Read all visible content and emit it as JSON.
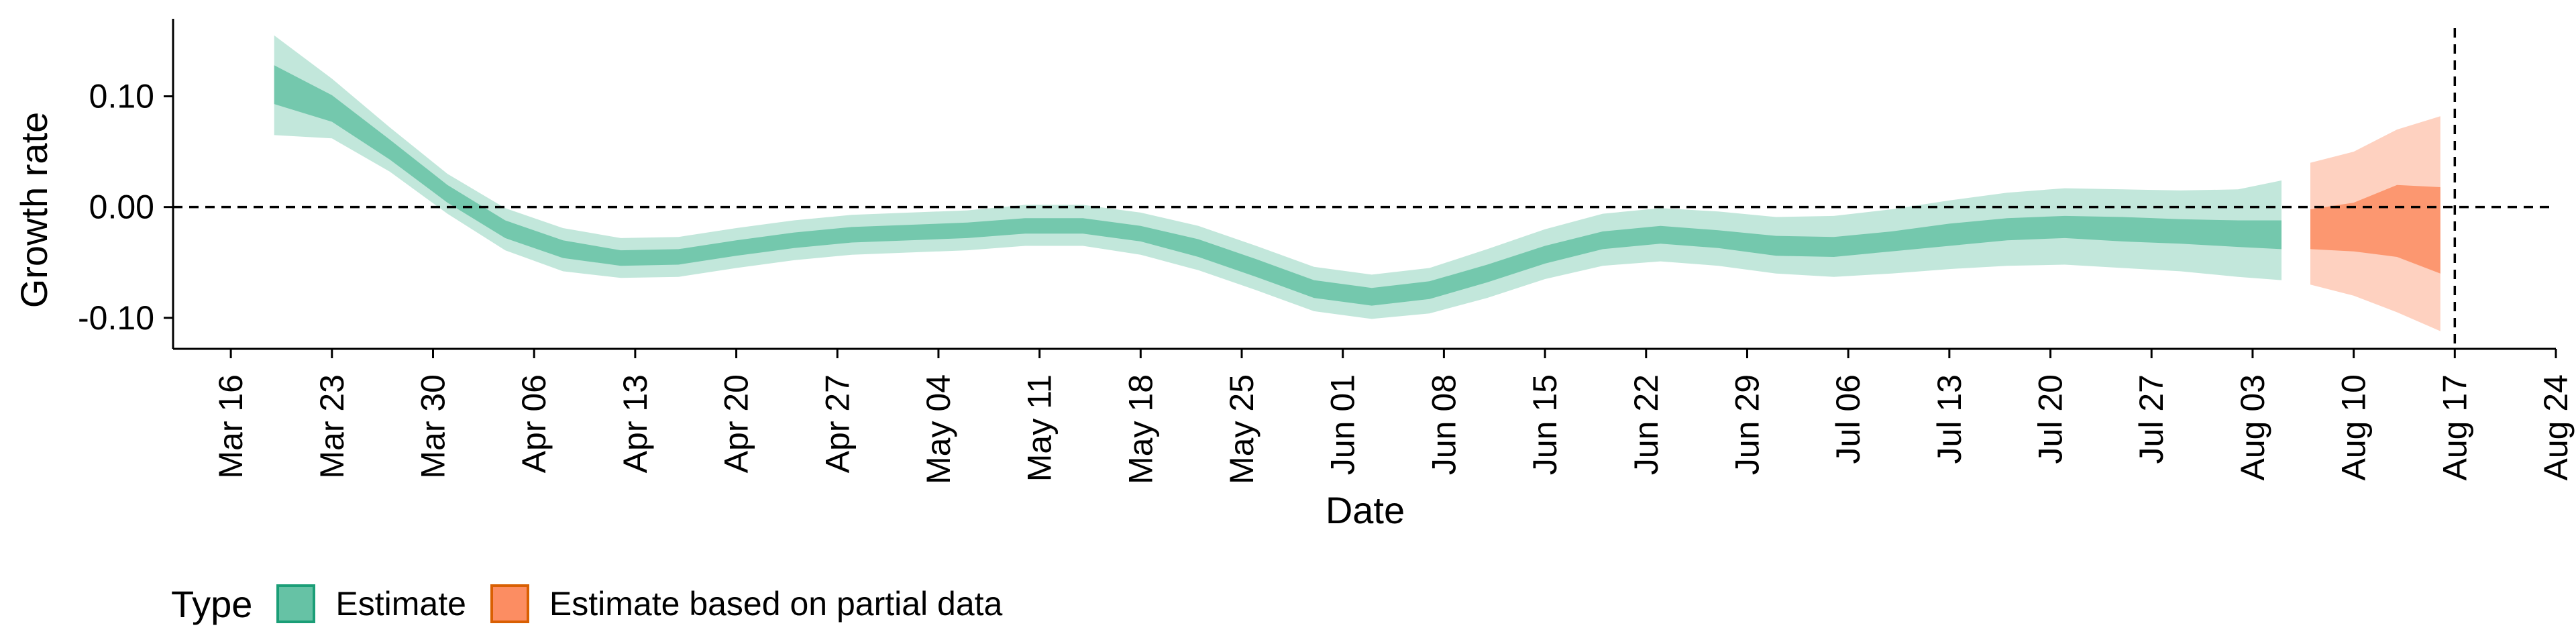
{
  "chart_data": {
    "type": "area",
    "xlabel": "Date",
    "ylabel": "Growth rate",
    "x_ticks": [
      "Mar 16",
      "Mar 23",
      "Mar 30",
      "Apr 06",
      "Apr 13",
      "Apr 20",
      "Apr 27",
      "May 04",
      "May 11",
      "May 18",
      "May 25",
      "Jun 01",
      "Jun 08",
      "Jun 15",
      "Jun 22",
      "Jun 29",
      "Jul 06",
      "Jul 13",
      "Jul 20",
      "Jul 27",
      "Aug 03",
      "Aug 10",
      "Aug 17",
      "Aug 24"
    ],
    "y_ticks": [
      "0.10",
      "0.00",
      "-0.10"
    ],
    "y_tick_values": [
      0.1,
      0.0,
      -0.1
    ],
    "xlim": [
      "2020-03-12",
      "2020-08-24"
    ],
    "ylim": [
      -0.128,
      0.17
    ],
    "reference_lines": {
      "horizontal_y": 0.0,
      "vertical_date": "2020-08-17"
    },
    "legend": {
      "title": "Type",
      "items": [
        {
          "label": "Estimate",
          "fill": "#66c2a5",
          "stroke": "#1b9e77"
        },
        {
          "label": "Estimate based on partial data",
          "fill": "#fc8d62",
          "stroke": "#d95f02"
        }
      ]
    },
    "series": [
      {
        "name": "Estimate",
        "color": "#66c2a5",
        "points": [
          {
            "date": "2020-03-19",
            "median": 0.11,
            "lower50": 0.093,
            "upper50": 0.128,
            "lower90": 0.065,
            "upper90": 0.155
          },
          {
            "date": "2020-03-23",
            "median": 0.089,
            "lower50": 0.077,
            "upper50": 0.101,
            "lower90": 0.062,
            "upper90": 0.116
          },
          {
            "date": "2020-03-27",
            "median": 0.052,
            "lower50": 0.043,
            "upper50": 0.061,
            "lower90": 0.032,
            "upper90": 0.072
          },
          {
            "date": "2020-03-31",
            "median": 0.012,
            "lower50": 0.004,
            "upper50": 0.02,
            "lower90": -0.006,
            "upper90": 0.03
          },
          {
            "date": "2020-04-04",
            "median": -0.02,
            "lower50": -0.028,
            "upper50": -0.012,
            "lower90": -0.039,
            "upper90": -0.001
          },
          {
            "date": "2020-04-08",
            "median": -0.038,
            "lower50": -0.046,
            "upper50": -0.03,
            "lower90": -0.058,
            "upper90": -0.019
          },
          {
            "date": "2020-04-12",
            "median": -0.046,
            "lower50": -0.053,
            "upper50": -0.039,
            "lower90": -0.064,
            "upper90": -0.028
          },
          {
            "date": "2020-04-16",
            "median": -0.045,
            "lower50": -0.052,
            "upper50": -0.038,
            "lower90": -0.063,
            "upper90": -0.027
          },
          {
            "date": "2020-04-20",
            "median": -0.037,
            "lower50": -0.044,
            "upper50": -0.03,
            "lower90": -0.055,
            "upper90": -0.019
          },
          {
            "date": "2020-04-24",
            "median": -0.03,
            "lower50": -0.037,
            "upper50": -0.023,
            "lower90": -0.048,
            "upper90": -0.012
          },
          {
            "date": "2020-04-28",
            "median": -0.025,
            "lower50": -0.032,
            "upper50": -0.018,
            "lower90": -0.043,
            "upper90": -0.007
          },
          {
            "date": "2020-05-02",
            "median": -0.023,
            "lower50": -0.03,
            "upper50": -0.016,
            "lower90": -0.041,
            "upper90": -0.005
          },
          {
            "date": "2020-05-06",
            "median": -0.021,
            "lower50": -0.028,
            "upper50": -0.014,
            "lower90": -0.039,
            "upper90": -0.003
          },
          {
            "date": "2020-05-10",
            "median": -0.017,
            "lower50": -0.024,
            "upper50": -0.01,
            "lower90": -0.035,
            "upper90": 0.002
          },
          {
            "date": "2020-05-14",
            "median": -0.017,
            "lower50": -0.024,
            "upper50": -0.01,
            "lower90": -0.035,
            "upper90": 0.002
          },
          {
            "date": "2020-05-18",
            "median": -0.024,
            "lower50": -0.031,
            "upper50": -0.017,
            "lower90": -0.043,
            "upper90": -0.005
          },
          {
            "date": "2020-05-22",
            "median": -0.037,
            "lower50": -0.045,
            "upper50": -0.029,
            "lower90": -0.057,
            "upper90": -0.017
          },
          {
            "date": "2020-05-26",
            "median": -0.055,
            "lower50": -0.063,
            "upper50": -0.047,
            "lower90": -0.075,
            "upper90": -0.035
          },
          {
            "date": "2020-05-30",
            "median": -0.074,
            "lower50": -0.082,
            "upper50": -0.066,
            "lower90": -0.094,
            "upper90": -0.054
          },
          {
            "date": "2020-06-03",
            "median": -0.081,
            "lower50": -0.089,
            "upper50": -0.073,
            "lower90": -0.101,
            "upper90": -0.061
          },
          {
            "date": "2020-06-07",
            "median": -0.075,
            "lower50": -0.083,
            "upper50": -0.067,
            "lower90": -0.096,
            "upper90": -0.055
          },
          {
            "date": "2020-06-11",
            "median": -0.06,
            "lower50": -0.068,
            "upper50": -0.052,
            "lower90": -0.082,
            "upper90": -0.038
          },
          {
            "date": "2020-06-15",
            "median": -0.043,
            "lower50": -0.051,
            "upper50": -0.035,
            "lower90": -0.065,
            "upper90": -0.02
          },
          {
            "date": "2020-06-19",
            "median": -0.03,
            "lower50": -0.038,
            "upper50": -0.022,
            "lower90": -0.053,
            "upper90": -0.006
          },
          {
            "date": "2020-06-23",
            "median": -0.025,
            "lower50": -0.033,
            "upper50": -0.017,
            "lower90": -0.049,
            "upper90": -0.001
          },
          {
            "date": "2020-06-27",
            "median": -0.029,
            "lower50": -0.037,
            "upper50": -0.021,
            "lower90": -0.053,
            "upper90": -0.004
          },
          {
            "date": "2020-07-01",
            "median": -0.035,
            "lower50": -0.044,
            "upper50": -0.026,
            "lower90": -0.06,
            "upper90": -0.009
          },
          {
            "date": "2020-07-05",
            "median": -0.036,
            "lower50": -0.045,
            "upper50": -0.027,
            "lower90": -0.063,
            "upper90": -0.008
          },
          {
            "date": "2020-07-09",
            "median": -0.031,
            "lower50": -0.04,
            "upper50": -0.022,
            "lower90": -0.06,
            "upper90": -0.002
          },
          {
            "date": "2020-07-13",
            "median": -0.025,
            "lower50": -0.035,
            "upper50": -0.015,
            "lower90": -0.056,
            "upper90": 0.006
          },
          {
            "date": "2020-07-17",
            "median": -0.02,
            "lower50": -0.03,
            "upper50": -0.01,
            "lower90": -0.053,
            "upper90": 0.013
          },
          {
            "date": "2020-07-21",
            "median": -0.018,
            "lower50": -0.028,
            "upper50": -0.008,
            "lower90": -0.052,
            "upper90": 0.017
          },
          {
            "date": "2020-07-25",
            "median": -0.02,
            "lower50": -0.031,
            "upper50": -0.009,
            "lower90": -0.055,
            "upper90": 0.016
          },
          {
            "date": "2020-07-29",
            "median": -0.022,
            "lower50": -0.033,
            "upper50": -0.011,
            "lower90": -0.058,
            "upper90": 0.015
          },
          {
            "date": "2020-08-02",
            "median": -0.024,
            "lower50": -0.036,
            "upper50": -0.012,
            "lower90": -0.063,
            "upper90": 0.016
          },
          {
            "date": "2020-08-05",
            "median": -0.025,
            "lower50": -0.038,
            "upper50": -0.012,
            "lower90": -0.066,
            "upper90": 0.024
          }
        ]
      },
      {
        "name": "Estimate based on partial data",
        "color": "#fc8d62",
        "points": [
          {
            "date": "2020-08-07",
            "median": -0.02,
            "lower50": -0.038,
            "upper50": -0.002,
            "lower90": -0.07,
            "upper90": 0.04
          },
          {
            "date": "2020-08-10",
            "median": -0.018,
            "lower50": -0.04,
            "upper50": 0.004,
            "lower90": -0.08,
            "upper90": 0.05
          },
          {
            "date": "2020-08-13",
            "median": -0.016,
            "lower50": -0.045,
            "upper50": 0.02,
            "lower90": -0.095,
            "upper90": 0.07
          },
          {
            "date": "2020-08-16",
            "median": -0.018,
            "lower50": -0.06,
            "upper50": 0.018,
            "lower90": -0.112,
            "upper90": 0.082
          }
        ]
      }
    ]
  }
}
